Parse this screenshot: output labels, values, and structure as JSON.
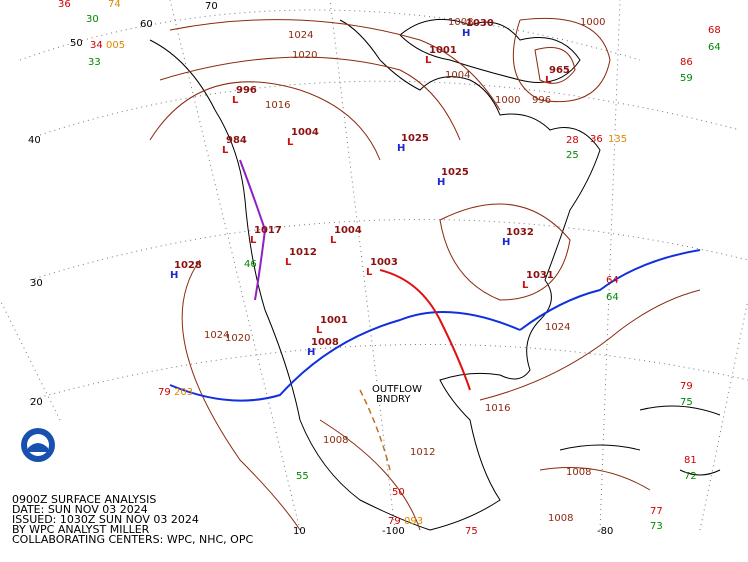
{
  "caption": [
    "0900Z SURFACE ANALYSIS",
    "DATE: SUN NOV 03 2024",
    "ISSUED: 1030Z SUN NOV 03 2024",
    "BY WPC ANALYST MILLER",
    "COLLABORATING CENTERS: WPC, NHC, OPC"
  ],
  "latitude_labels": [
    "70",
    "60",
    "50",
    "40",
    "30",
    "20"
  ],
  "longitude_labels": [
    "10",
    "-100",
    "-80"
  ],
  "pressure_centers": [
    {
      "symbol": "H",
      "pressure": "1028"
    },
    {
      "symbol": "L",
      "pressure": "1004"
    },
    {
      "symbol": "L",
      "pressure": "1001"
    },
    {
      "symbol": "H",
      "pressure": "1030"
    },
    {
      "symbol": "L",
      "pressure": "996"
    },
    {
      "symbol": "L",
      "pressure": "984"
    },
    {
      "symbol": "H",
      "pressure": "1025"
    },
    {
      "symbol": "H",
      "pressure": "1025"
    },
    {
      "symbol": "L",
      "pressure": "1004"
    },
    {
      "symbol": "L",
      "pressure": "1012"
    },
    {
      "symbol": "L",
      "pressure": "1017"
    },
    {
      "symbol": "L",
      "pressure": "1003"
    },
    {
      "symbol": "H",
      "pressure": "1032"
    },
    {
      "symbol": "L",
      "pressure": "1031"
    },
    {
      "symbol": "L",
      "pressure": "1001"
    },
    {
      "symbol": "H",
      "pressure": "1008"
    },
    {
      "symbol": "L",
      "pressure": "965"
    }
  ],
  "isobar_labels": [
    "1024",
    "1020",
    "1016",
    "1008",
    "1004",
    "1000",
    "1000",
    "996",
    "1008",
    "1012",
    "1016",
    "1020",
    "1024",
    "1024",
    "1008",
    "1008"
  ],
  "station_values": [
    {
      "value": "36",
      "color": "#cc0000"
    },
    {
      "value": "30",
      "color": "#008800"
    },
    {
      "value": "74",
      "color": "#dd8800"
    },
    {
      "value": "34",
      "color": "#cc0000"
    },
    {
      "value": "005",
      "color": "#dd8800"
    },
    {
      "value": "33",
      "color": "#008800"
    },
    {
      "value": "68",
      "color": "#cc0000"
    },
    {
      "value": "64",
      "color": "#008800"
    },
    {
      "value": "86",
      "color": "#cc0000"
    },
    {
      "value": "59",
      "color": "#008800"
    },
    {
      "value": "79",
      "color": "#cc0000"
    },
    {
      "value": "203",
      "color": "#dd8800"
    },
    {
      "value": "79",
      "color": "#cc0000"
    },
    {
      "value": "75",
      "color": "#008800"
    },
    {
      "value": "64",
      "color": "#cc0000"
    },
    {
      "value": "64",
      "color": "#008800"
    },
    {
      "value": "28",
      "color": "#cc0000"
    },
    {
      "value": "25",
      "color": "#008800"
    },
    {
      "value": "36",
      "color": "#cc0000"
    },
    {
      "value": "135",
      "color": "#dd8800"
    },
    {
      "value": "77",
      "color": "#cc0000"
    },
    {
      "value": "73",
      "color": "#008800"
    },
    {
      "value": "81",
      "color": "#cc0000"
    },
    {
      "value": "72",
      "color": "#008800"
    },
    {
      "value": "55",
      "color": "#008800"
    },
    {
      "value": "46",
      "color": "#008800"
    },
    {
      "value": "79",
      "color": "#cc0000"
    },
    {
      "value": "093",
      "color": "#dd8800"
    },
    {
      "value": "75",
      "color": "#cc0000"
    },
    {
      "value": "50",
      "color": "#cc0000"
    }
  ],
  "annotations": [
    "OUTFLOW",
    "BNDRY"
  ]
}
